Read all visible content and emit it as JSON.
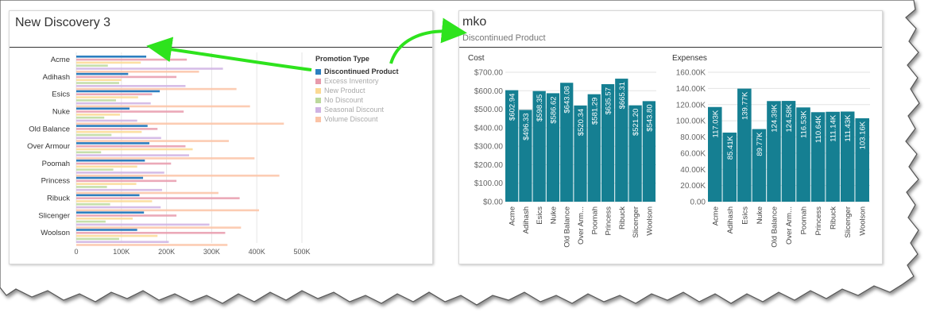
{
  "colors": {
    "discontinued": "#2d7fc0",
    "excess": "#e79aab",
    "new": "#fbd993",
    "nodiscount": "#bcd99c",
    "seasonal": "#cfb2e3",
    "volume": "#fbc3a6",
    "teal": "#157f92",
    "annotation_arrow": "#2ee31d"
  },
  "left_panel": {
    "title": "New Discovery 3",
    "legend": {
      "title": "Promotion Type",
      "items": [
        "Discontinued Product",
        "Excess Inventory",
        "New Product",
        "No Discount",
        "Seasonal Discount",
        "Volume Discount"
      ]
    }
  },
  "right_panel": {
    "title": "mko",
    "subtitle": "Discontinued Product",
    "cost_title": "Cost",
    "expenses_title": "Expenses"
  },
  "chart_data": [
    {
      "type": "bar",
      "orientation": "horizontal",
      "categories": [
        "Acme",
        "Adihash",
        "Esics",
        "Nuke",
        "Old Balance",
        "Over Armour",
        "Poomah",
        "Princess",
        "Ribuck",
        "Slicenger",
        "Woolson"
      ],
      "series": [
        {
          "name": "Discontinued Product",
          "values": [
            155000,
            115000,
            185000,
            118000,
            158000,
            162000,
            152000,
            148000,
            140000,
            150000,
            135000
          ]
        },
        {
          "name": "Excess Inventory",
          "values": [
            245000,
            222000,
            168000,
            238000,
            180000,
            242000,
            210000,
            222000,
            362000,
            222000,
            330000
          ]
        },
        {
          "name": "New Product",
          "values": [
            143000,
            100000,
            137000,
            97000,
            145000,
            258000,
            135000,
            133000,
            168000,
            125000,
            180000
          ]
        },
        {
          "name": "No Discount",
          "values": [
            70000,
            95000,
            88000,
            62000,
            78000,
            55000,
            82000,
            68000,
            75000,
            65000,
            95000
          ]
        },
        {
          "name": "Seasonal Discount",
          "values": [
            325000,
            242000,
            165000,
            135000,
            188000,
            250000,
            195000,
            190000,
            187000,
            295000,
            205000
          ]
        },
        {
          "name": "Volume Discount",
          "values": [
            272000,
            355000,
            385000,
            460000,
            338000,
            395000,
            450000,
            315000,
            405000,
            365000,
            335000
          ]
        }
      ],
      "xlim": [
        0,
        500000
      ],
      "xticks": [
        "0",
        "100K",
        "200K",
        "300K",
        "400K",
        "500K"
      ],
      "grid": true,
      "legend_position": "right"
    },
    {
      "type": "bar",
      "title": "Cost",
      "categories": [
        "Acme",
        "Adihash",
        "Esics",
        "Nuke",
        "Old Balance",
        "Over Arm...",
        "Poomah",
        "Princess",
        "Ribuck",
        "Slicenger",
        "Woolson"
      ],
      "values": [
        602.94,
        496.33,
        598.35,
        586.62,
        643.08,
        520.34,
        581.29,
        635.57,
        665.31,
        521.2,
        543.8
      ],
      "labels": [
        "$602.94",
        "$496.33",
        "$598.35",
        "$586.62",
        "$643.08",
        "$520.34",
        "$581.29",
        "$635.57",
        "$665.31",
        "$521.20",
        "$543.80"
      ],
      "yticks": [
        "$700.00",
        "$600.00",
        "$500.00",
        "$400.00",
        "$300.00",
        "$200.00",
        "$100.00",
        "$0.00"
      ],
      "ylim": [
        0,
        700
      ]
    },
    {
      "type": "bar",
      "title": "Expenses",
      "categories": [
        "Acme",
        "Adihash",
        "Esics",
        "Nuke",
        "Old Balance",
        "Over Arm...",
        "Poomah",
        "Princess",
        "Ribuck",
        "Slicenger",
        "Woolson"
      ],
      "values": [
        117030,
        85410,
        139770,
        89770,
        124390,
        124580,
        116530,
        110640,
        111140,
        111430,
        103160
      ],
      "labels": [
        "117.03K",
        "85.41K",
        "139.77K",
        "89.77K",
        "124.39K",
        "124.58K",
        "116.53K",
        "110.64K",
        "111.14K",
        "111.43K",
        "103.16K"
      ],
      "yticks": [
        "160.00K",
        "140.00K",
        "120.00K",
        "100.00K",
        "80.00K",
        "60.00K",
        "40.00K",
        "20.00K",
        "0.00"
      ],
      "ylim": [
        0,
        160000
      ]
    }
  ]
}
